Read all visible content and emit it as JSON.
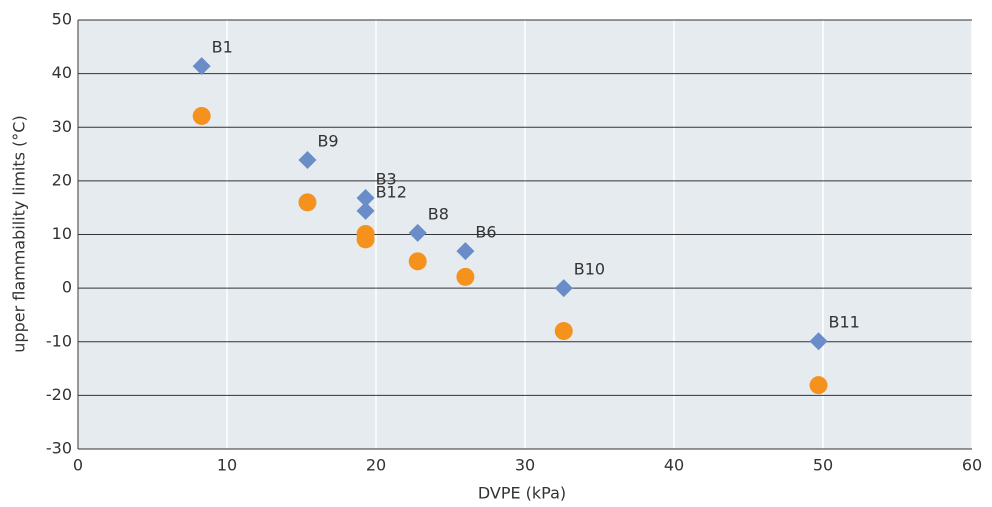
{
  "chart_data": {
    "type": "scatter",
    "x_label": "DVPE (kPa)",
    "y_label": "upper flammability limits (°C)",
    "xlim": [
      0,
      60
    ],
    "xticks": [
      0,
      10,
      20,
      30,
      40,
      50,
      60
    ],
    "ylim": [
      -30,
      50
    ],
    "yticks": [
      -30,
      -20,
      -10,
      0,
      10,
      20,
      30,
      40,
      50
    ],
    "grid": true,
    "series": [
      {
        "color": "#6a8cc8",
        "marker": "diamond",
        "x": [
          8.3,
          15.4,
          19.3,
          19.3,
          22.8,
          26.0,
          32.6,
          49.7
        ],
        "values": [
          41.4,
          23.9,
          16.8,
          14.4,
          10.3,
          6.9,
          0,
          -9.9
        ],
        "point_labels": [
          "B1",
          "B9",
          "B3",
          "B12",
          "B8",
          "B6",
          "B10",
          "B11"
        ]
      },
      {
        "color": "#f5921e",
        "marker": "circle",
        "x": [
          8.3,
          15.4,
          19.3,
          19.3,
          22.8,
          26.0,
          32.6,
          49.7
        ],
        "values": [
          32.1,
          16.0,
          10.1,
          9.1,
          5.0,
          2.1,
          -8.0,
          -18.1
        ]
      }
    ]
  }
}
